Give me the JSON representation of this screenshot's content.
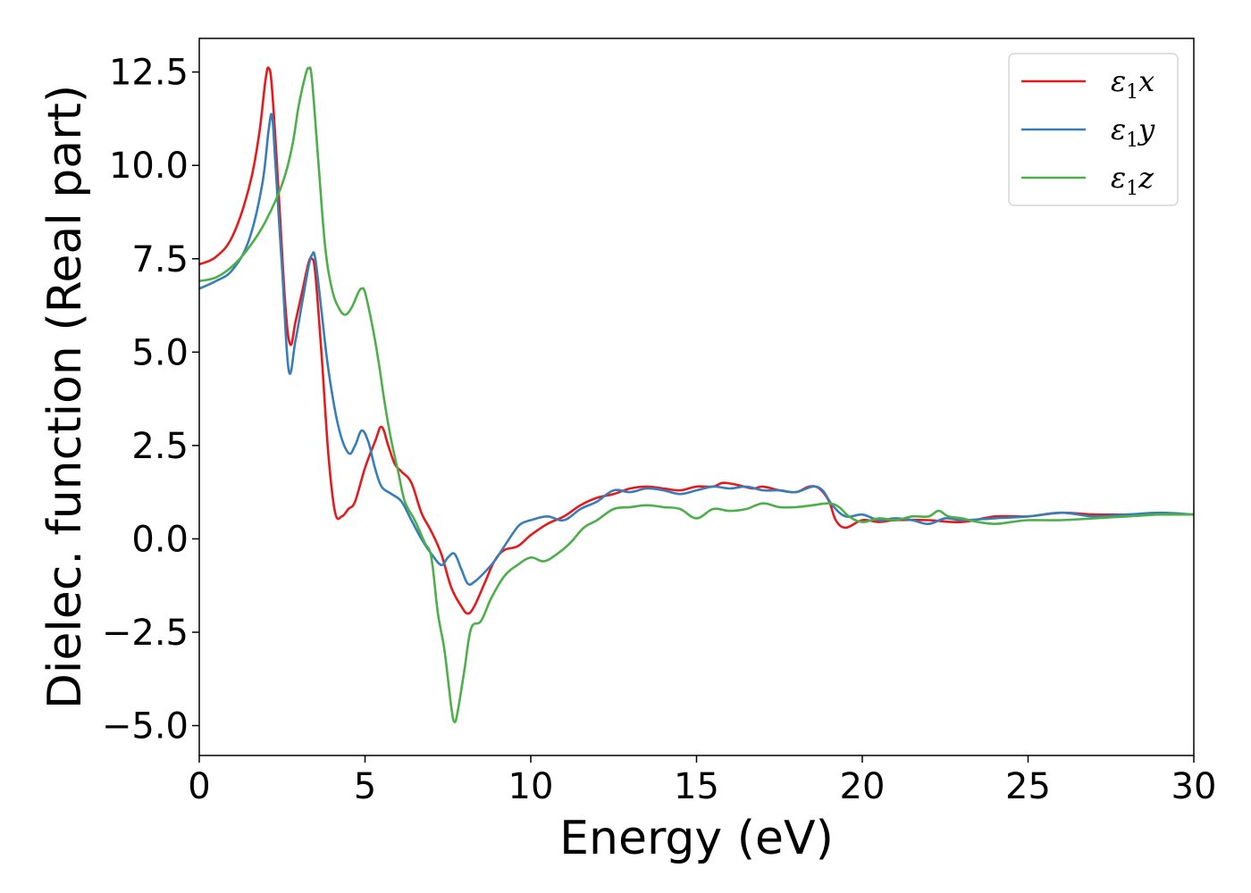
{
  "chart_data": {
    "type": "line",
    "title": "",
    "xlabel": "Energy (eV)",
    "ylabel": "Dielec. function (Real part)",
    "xlim": [
      0,
      30
    ],
    "ylim": [
      -5.8,
      13.4
    ],
    "xticks": [
      0,
      5,
      10,
      15,
      20,
      25,
      30
    ],
    "xtick_labels": [
      "0",
      "5",
      "10",
      "15",
      "20",
      "25",
      "30"
    ],
    "yticks": [
      -5.0,
      -2.5,
      0.0,
      2.5,
      5.0,
      7.5,
      10.0,
      12.5
    ],
    "ytick_labels": [
      "−5.0",
      "−2.5",
      "0.0",
      "2.5",
      "5.0",
      "7.5",
      "10.0",
      "12.5"
    ],
    "grid": false,
    "legend_position": "top-right",
    "series": [
      {
        "name": "ε1x",
        "legend_base": "ε",
        "legend_sub": "1",
        "legend_var": "x",
        "color": "#e41a1c",
        "x": [
          0,
          0.5,
          1.0,
          1.5,
          1.8,
          2.0,
          2.1,
          2.2,
          2.4,
          2.6,
          2.75,
          2.9,
          3.1,
          3.3,
          3.4,
          3.5,
          3.7,
          3.9,
          4.1,
          4.3,
          4.5,
          4.7,
          5.0,
          5.3,
          5.5,
          5.7,
          5.9,
          6.1,
          6.4,
          6.7,
          7.0,
          7.3,
          7.6,
          7.9,
          8.1,
          8.3,
          8.6,
          8.9,
          9.2,
          9.6,
          10.0,
          10.5,
          11.0,
          11.5,
          12.0,
          12.5,
          13.0,
          13.5,
          14.0,
          14.5,
          15.0,
          15.5,
          15.8,
          16.2,
          16.7,
          17.0,
          17.5,
          18.0,
          18.4,
          18.7,
          19.0,
          19.2,
          19.5,
          20.0,
          20.5,
          21.0,
          22.0,
          23.0,
          24.0,
          25.0,
          26.0,
          27.0,
          28.0,
          29.0,
          30.0
        ],
        "y": [
          7.35,
          7.55,
          8.1,
          9.4,
          10.8,
          12.3,
          12.6,
          12.0,
          9.2,
          6.2,
          5.2,
          5.8,
          6.6,
          7.4,
          7.5,
          7.1,
          4.8,
          2.2,
          0.7,
          0.6,
          0.8,
          1.0,
          1.9,
          2.6,
          3.0,
          2.5,
          2.0,
          1.8,
          1.5,
          0.7,
          0.2,
          -0.4,
          -1.3,
          -1.8,
          -2.0,
          -1.8,
          -1.2,
          -0.6,
          -0.3,
          -0.2,
          0.1,
          0.4,
          0.6,
          0.9,
          1.1,
          1.2,
          1.35,
          1.4,
          1.35,
          1.3,
          1.4,
          1.4,
          1.5,
          1.45,
          1.35,
          1.4,
          1.3,
          1.25,
          1.4,
          1.35,
          1.0,
          0.5,
          0.3,
          0.5,
          0.45,
          0.5,
          0.5,
          0.45,
          0.6,
          0.6,
          0.7,
          0.65,
          0.65,
          0.65,
          0.65
        ]
      },
      {
        "name": "ε1y",
        "legend_base": "ε",
        "legend_sub": "1",
        "legend_var": "y",
        "color": "#377eb8",
        "x": [
          0,
          0.5,
          1.0,
          1.5,
          1.9,
          2.1,
          2.2,
          2.3,
          2.5,
          2.7,
          2.9,
          3.1,
          3.3,
          3.4,
          3.5,
          3.7,
          3.9,
          4.2,
          4.5,
          4.7,
          4.9,
          5.1,
          5.3,
          5.5,
          5.8,
          6.1,
          6.4,
          6.7,
          7.0,
          7.3,
          7.5,
          7.7,
          7.9,
          8.1,
          8.3,
          8.6,
          8.9,
          9.2,
          9.5,
          9.7,
          10.0,
          10.5,
          11.0,
          11.5,
          12.0,
          12.5,
          13.0,
          13.5,
          14.0,
          14.5,
          15.0,
          15.5,
          16.0,
          16.5,
          17.0,
          17.5,
          18.0,
          18.5,
          18.8,
          19.1,
          19.5,
          20.0,
          20.5,
          21.0,
          21.5,
          22.0,
          22.5,
          23.0,
          24.0,
          25.0,
          26.0,
          27.0,
          28.0,
          29.0,
          30.0
        ],
        "y": [
          6.7,
          6.9,
          7.2,
          8.0,
          9.5,
          11.0,
          11.3,
          10.0,
          7.2,
          4.5,
          5.3,
          6.3,
          7.3,
          7.6,
          7.5,
          6.0,
          4.5,
          3.0,
          2.3,
          2.5,
          2.9,
          2.6,
          1.9,
          1.4,
          1.2,
          1.0,
          0.5,
          0.0,
          -0.4,
          -0.7,
          -0.5,
          -0.4,
          -0.8,
          -1.2,
          -1.15,
          -0.9,
          -0.6,
          -0.2,
          0.2,
          0.4,
          0.5,
          0.6,
          0.5,
          0.8,
          1.0,
          1.3,
          1.25,
          1.35,
          1.3,
          1.2,
          1.3,
          1.4,
          1.35,
          1.4,
          1.3,
          1.3,
          1.25,
          1.4,
          1.3,
          0.9,
          0.6,
          0.65,
          0.5,
          0.55,
          0.5,
          0.4,
          0.55,
          0.5,
          0.55,
          0.6,
          0.7,
          0.6,
          0.65,
          0.7,
          0.65
        ]
      },
      {
        "name": "ε1z",
        "legend_base": "ε",
        "legend_sub": "1",
        "legend_var": "z",
        "color": "#4daf4a",
        "x": [
          0,
          0.5,
          1.0,
          1.5,
          2.0,
          2.5,
          2.8,
          3.0,
          3.2,
          3.3,
          3.4,
          3.6,
          3.8,
          4.0,
          4.2,
          4.4,
          4.6,
          4.8,
          4.9,
          5.0,
          5.2,
          5.4,
          5.6,
          5.8,
          6.0,
          6.2,
          6.5,
          6.8,
          7.0,
          7.2,
          7.4,
          7.6,
          7.7,
          7.8,
          8.0,
          8.2,
          8.5,
          8.8,
          9.2,
          9.6,
          10.0,
          10.4,
          10.8,
          11.2,
          11.6,
          12.0,
          12.5,
          13.0,
          13.5,
          14.0,
          14.5,
          15.0,
          15.5,
          16.0,
          16.5,
          17.0,
          17.5,
          18.0,
          18.5,
          19.0,
          19.3,
          19.6,
          20.0,
          20.5,
          21.0,
          21.5,
          22.0,
          22.3,
          22.6,
          23.0,
          23.5,
          24.0,
          24.5,
          25.0,
          26.0,
          27.0,
          28.0,
          29.0,
          30.0
        ],
        "y": [
          6.9,
          7.0,
          7.3,
          7.8,
          8.5,
          9.5,
          10.5,
          11.6,
          12.4,
          12.6,
          12.3,
          10.0,
          7.8,
          6.7,
          6.2,
          6.0,
          6.2,
          6.6,
          6.7,
          6.6,
          5.8,
          4.8,
          3.6,
          2.6,
          1.8,
          1.0,
          0.5,
          -0.1,
          -0.5,
          -2.0,
          -3.0,
          -4.5,
          -4.9,
          -4.6,
          -3.5,
          -2.4,
          -2.2,
          -1.6,
          -1.0,
          -0.7,
          -0.5,
          -0.6,
          -0.4,
          -0.1,
          0.3,
          0.5,
          0.8,
          0.85,
          0.9,
          0.85,
          0.8,
          0.55,
          0.8,
          0.75,
          0.8,
          0.95,
          0.85,
          0.85,
          0.9,
          0.95,
          0.85,
          0.6,
          0.45,
          0.55,
          0.5,
          0.6,
          0.6,
          0.75,
          0.6,
          0.55,
          0.45,
          0.4,
          0.45,
          0.5,
          0.5,
          0.55,
          0.6,
          0.65,
          0.65
        ]
      }
    ]
  }
}
